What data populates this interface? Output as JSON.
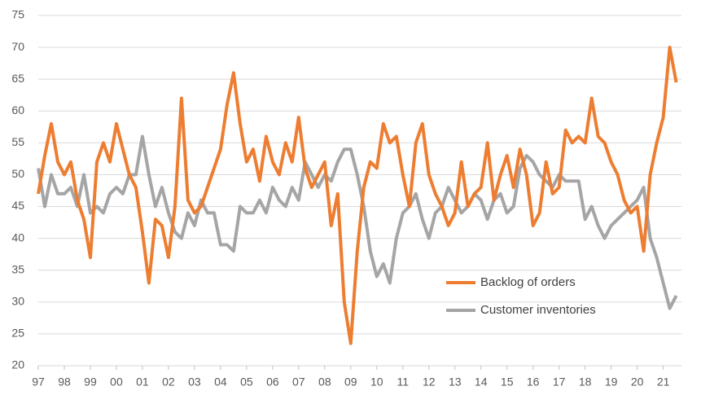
{
  "chart_data": {
    "type": "line",
    "x": [
      1997,
      1997.25,
      1997.5,
      1997.75,
      1998,
      1998.25,
      1998.5,
      1998.75,
      1999,
      1999.25,
      1999.5,
      1999.75,
      2000,
      2000.25,
      2000.5,
      2000.75,
      2001,
      2001.25,
      2001.5,
      2001.75,
      2002,
      2002.25,
      2002.5,
      2002.75,
      2003,
      2003.25,
      2003.5,
      2003.75,
      2004,
      2004.25,
      2004.5,
      2004.75,
      2005,
      2005.25,
      2005.5,
      2005.75,
      2006,
      2006.25,
      2006.5,
      2006.75,
      2007,
      2007.25,
      2007.5,
      2007.75,
      2008,
      2008.25,
      2008.5,
      2008.75,
      2009,
      2009.25,
      2009.5,
      2009.75,
      2010,
      2010.25,
      2010.5,
      2010.75,
      2011,
      2011.25,
      2011.5,
      2011.75,
      2012,
      2012.25,
      2012.5,
      2012.75,
      2013,
      2013.25,
      2013.5,
      2013.75,
      2014,
      2014.25,
      2014.5,
      2014.75,
      2015,
      2015.25,
      2015.5,
      2015.75,
      2016,
      2016.25,
      2016.5,
      2016.75,
      2017,
      2017.25,
      2017.5,
      2017.75,
      2018,
      2018.25,
      2018.5,
      2018.75,
      2019,
      2019.25,
      2019.5,
      2019.75,
      2020,
      2020.25,
      2020.5,
      2020.75,
      2021,
      2021.25,
      2021.5
    ],
    "series": [
      {
        "name": "Backlog of orders",
        "color": "#ed7d31",
        "values": [
          47,
          53,
          58,
          52,
          50,
          52,
          46,
          43,
          37,
          52,
          55,
          52,
          58,
          54,
          50,
          48,
          41,
          33,
          43,
          42,
          37,
          45,
          62,
          46,
          44,
          45,
          48,
          51,
          54,
          61,
          66,
          58,
          52,
          54,
          49,
          56,
          52,
          50,
          55,
          52,
          59,
          51,
          48,
          50,
          52,
          42,
          47,
          30,
          23.5,
          38,
          48,
          52,
          51,
          58,
          55,
          56,
          50,
          45,
          55,
          58,
          50,
          47,
          45,
          42,
          44,
          52,
          45,
          47,
          48,
          55,
          46,
          50,
          53,
          48,
          54,
          50,
          42,
          44,
          52,
          47,
          48,
          57,
          55,
          56,
          55,
          62,
          56,
          55,
          52,
          50,
          46,
          44,
          45,
          38,
          50,
          55,
          59,
          70,
          64.5
        ]
      },
      {
        "name": "Customer inventories",
        "color": "#a5a5a5",
        "values": [
          51,
          45,
          50,
          47,
          47,
          48,
          45,
          50,
          44,
          45,
          44,
          47,
          48,
          47,
          50,
          50,
          56,
          50,
          45,
          48,
          44,
          41,
          40,
          44,
          42,
          46,
          44,
          44,
          39,
          39,
          38,
          45,
          44,
          44,
          46,
          44,
          48,
          46,
          45,
          48,
          46,
          52,
          50,
          48,
          50,
          49,
          52,
          54,
          54,
          50,
          45,
          38,
          34,
          36,
          33,
          40,
          44,
          45,
          47,
          43,
          40,
          44,
          45,
          48,
          46,
          44,
          45,
          47,
          46,
          43,
          46,
          47,
          44,
          45,
          51,
          53,
          52,
          50,
          49,
          48,
          50,
          49,
          49,
          49,
          43,
          45,
          42,
          40,
          42,
          43,
          44,
          45,
          46,
          48,
          40,
          37,
          33,
          29,
          31
        ]
      }
    ],
    "xlim": [
      1997,
      2021.7
    ],
    "xticks": [
      {
        "value": 1997,
        "label": "97"
      },
      {
        "value": 1998,
        "label": "98"
      },
      {
        "value": 1999,
        "label": "99"
      },
      {
        "value": 2000,
        "label": "00"
      },
      {
        "value": 2001,
        "label": "01"
      },
      {
        "value": 2002,
        "label": "02"
      },
      {
        "value": 2003,
        "label": "03"
      },
      {
        "value": 2004,
        "label": "04"
      },
      {
        "value": 2005,
        "label": "05"
      },
      {
        "value": 2006,
        "label": "06"
      },
      {
        "value": 2007,
        "label": "07"
      },
      {
        "value": 2008,
        "label": "08"
      },
      {
        "value": 2009,
        "label": "09"
      },
      {
        "value": 2010,
        "label": "10"
      },
      {
        "value": 2011,
        "label": "11"
      },
      {
        "value": 2012,
        "label": "12"
      },
      {
        "value": 2013,
        "label": "13"
      },
      {
        "value": 2014,
        "label": "14"
      },
      {
        "value": 2015,
        "label": "15"
      },
      {
        "value": 2016,
        "label": "16"
      },
      {
        "value": 2017,
        "label": "17"
      },
      {
        "value": 2018,
        "label": "18"
      },
      {
        "value": 2019,
        "label": "19"
      },
      {
        "value": 2020,
        "label": "20"
      },
      {
        "value": 2021,
        "label": "21"
      }
    ],
    "ylim": [
      20,
      75
    ],
    "yticks": [
      20,
      25,
      30,
      35,
      40,
      45,
      50,
      55,
      60,
      65,
      70,
      75
    ],
    "grid": true,
    "legend": "lower-right"
  }
}
